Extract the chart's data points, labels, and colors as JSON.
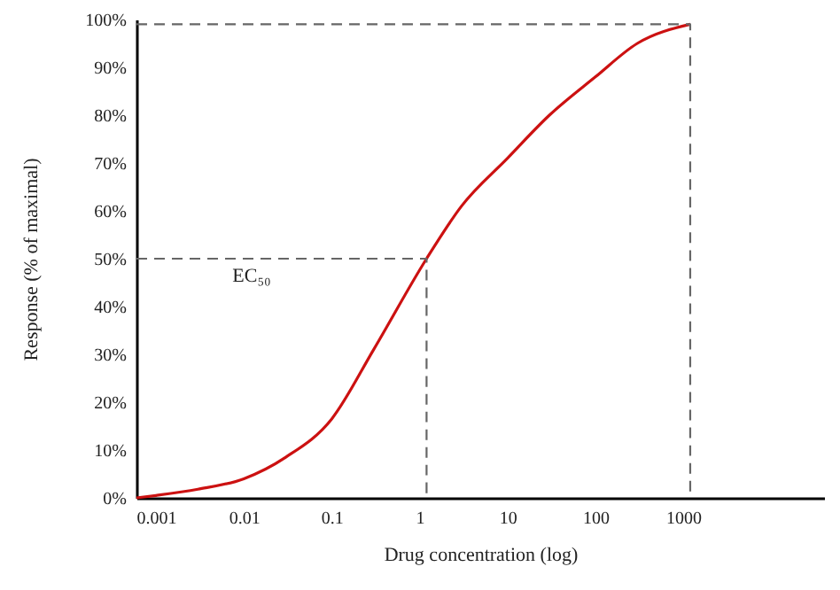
{
  "chart_data": {
    "type": "line",
    "xlabel": "Drug concentration (log)",
    "ylabel": "Response (% of maximal)",
    "log": "x",
    "xlim": [
      0.0006,
      40000
    ],
    "xticks": [
      0.001,
      0.01,
      0.1,
      1,
      10,
      100,
      1000
    ],
    "ylim": [
      0,
      100
    ],
    "yticks": [
      {
        "value": 0,
        "label": "0%"
      },
      {
        "value": 10,
        "label": "10%"
      },
      {
        "value": 20,
        "label": "20%"
      },
      {
        "value": 30,
        "label": "30%"
      },
      {
        "value": 40,
        "label": "40%"
      },
      {
        "value": 50,
        "label": "50%"
      },
      {
        "value": 60,
        "label": "60%"
      },
      {
        "value": 70,
        "label": "70%"
      },
      {
        "value": 80,
        "label": "80%"
      },
      {
        "value": 90,
        "label": "90%"
      },
      {
        "value": 100,
        "label": "100%"
      }
    ],
    "grid": false,
    "marker": "none",
    "series": [
      {
        "color": "#cc1111",
        "line_style": "solid",
        "x": [
          0.0006,
          0.001,
          0.003,
          0.01,
          0.03,
          0.1,
          0.3,
          1.2,
          3,
          10,
          30,
          100,
          300,
          1200
        ],
        "values": [
          0,
          0.5,
          1.8,
          4,
          8.5,
          16.5,
          31,
          50,
          61,
          71,
          80,
          88,
          95,
          99
        ]
      },
      {
        "color": "#666666",
        "line_style": "dashed",
        "x": [
          0.0006,
          1.2,
          1.2
        ],
        "values": [
          50,
          50,
          0
        ]
      },
      {
        "color": "#666666",
        "line_style": "dashed",
        "x": [
          0.0006,
          1200,
          1200
        ],
        "values": [
          99,
          99,
          0
        ]
      }
    ],
    "annotations": [
      "EC₅₀"
    ]
  }
}
